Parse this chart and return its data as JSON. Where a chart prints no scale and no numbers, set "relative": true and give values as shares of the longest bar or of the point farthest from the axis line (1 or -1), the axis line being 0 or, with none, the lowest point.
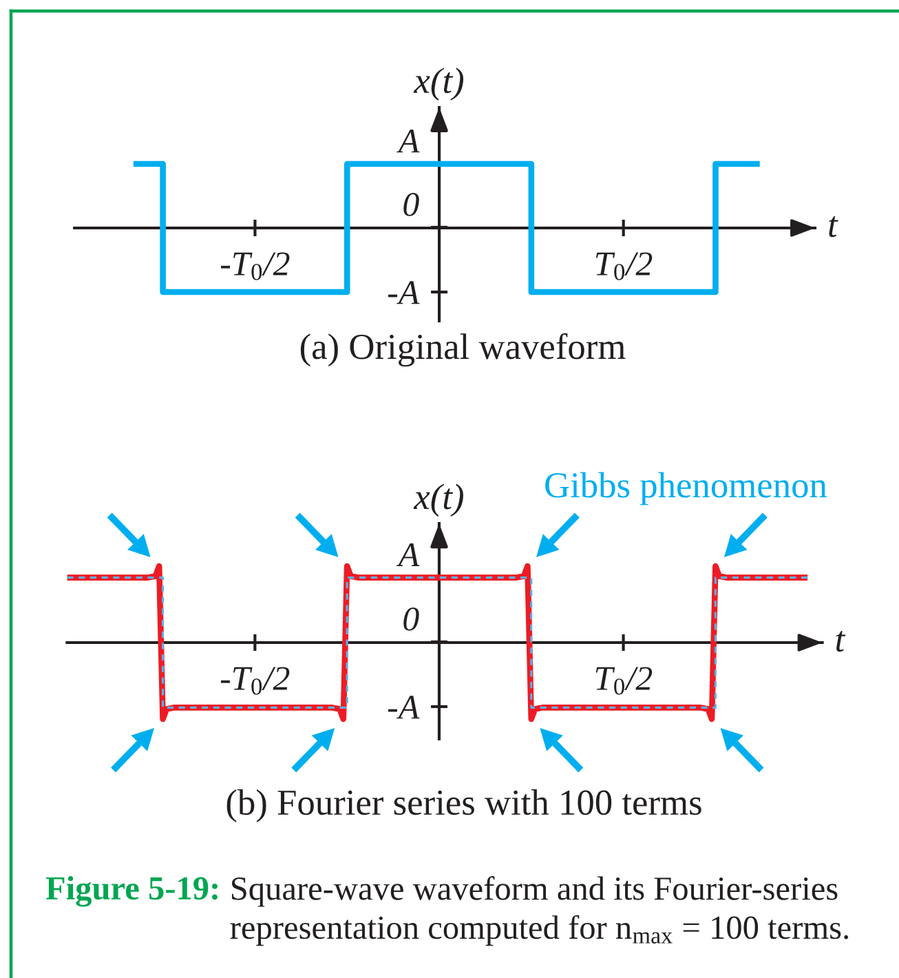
{
  "chart_data": [
    {
      "type": "step",
      "relative": true,
      "title": "(a) Original waveform",
      "xlabel": "t",
      "ylabel": "x(t)",
      "categories": [
        null,
        null,
        null,
        null,
        null,
        null,
        null,
        null,
        null,
        null,
        null,
        null,
        null,
        null,
        null,
        null,
        null,
        null,
        null,
        null,
        null,
        null,
        null,
        null,
        null,
        null,
        null,
        null,
        null,
        null,
        null,
        null,
        null,
        null,
        null,
        null,
        null,
        null,
        null,
        null,
        null,
        null,
        null,
        null,
        null,
        null,
        null,
        null,
        null,
        "-T$_{0}$/2",
        null,
        null,
        null,
        null,
        null,
        null,
        null,
        null,
        null,
        null,
        null,
        null,
        null,
        null,
        null,
        null,
        null,
        null,
        null,
        null,
        null,
        null,
        null,
        null,
        null,
        null,
        null,
        null,
        null,
        null,
        null,
        null,
        null,
        null,
        null,
        null,
        null,
        null,
        null,
        null,
        null,
        null,
        null,
        null,
        null,
        null,
        null,
        null,
        null,
        null,
        null,
        null,
        null,
        null,
        null,
        null,
        null,
        null,
        null,
        null,
        null,
        null,
        null,
        null,
        null,
        null,
        null,
        null,
        null,
        null,
        null,
        null,
        null,
        null,
        null,
        null,
        null,
        null,
        null,
        null,
        null,
        null,
        null,
        null,
        null,
        null,
        null,
        null,
        null,
        null,
        null,
        null,
        null,
        null,
        null,
        null,
        null,
        null,
        null,
        "T$_{0}$/2",
        null,
        null,
        null,
        null,
        null,
        null,
        null,
        null,
        null,
        null,
        null,
        null,
        null,
        null,
        null,
        null,
        null,
        null,
        null,
        null,
        null,
        null,
        null,
        null,
        null,
        null,
        null,
        null,
        null,
        null,
        null,
        null,
        null,
        null,
        null,
        null,
        null,
        null,
        null,
        null,
        null,
        null,
        null,
        null,
        null,
        null,
        null,
        null,
        null,
        null,
        null,
        null
      ],
      "series": [
        {
          "color": "#00aeef",
          "values": [
            null,
            null,
            null,
            null,
            null,
            null,
            null,
            null,
            null,
            null,
            null,
            null,
            null,
            null,
            null,
            null,
            1,
            1,
            1,
            1,
            1,
            1,
            1,
            1,
            -1,
            -1,
            -1,
            -1,
            -1,
            -1,
            -1,
            -1,
            -1,
            -1,
            -1,
            -1,
            -1,
            -1,
            -1,
            -1,
            -1,
            -1,
            -1,
            -1,
            -1,
            -1,
            -1,
            -1,
            -1,
            -1,
            -1,
            -1,
            -1,
            -1,
            -1,
            -1,
            -1,
            -1,
            -1,
            -1,
            -1,
            -1,
            -1,
            -1,
            -1,
            -1,
            -1,
            -1,
            -1,
            -1,
            -1,
            -1,
            -1,
            -1,
            1,
            1,
            1,
            1,
            1,
            1,
            1,
            1,
            1,
            1,
            1,
            1,
            1,
            1,
            1,
            1,
            1,
            1,
            1,
            1,
            1,
            1,
            1,
            1,
            1,
            1,
            1,
            1,
            1,
            1,
            1,
            1,
            1,
            1,
            1,
            1,
            1,
            1,
            1,
            1,
            1,
            1,
            1,
            1,
            1,
            1,
            1,
            1,
            1,
            1,
            -1,
            -1,
            -1,
            -1,
            -1,
            -1,
            -1,
            -1,
            -1,
            -1,
            -1,
            -1,
            -1,
            -1,
            -1,
            -1,
            -1,
            -1,
            -1,
            -1,
            -1,
            -1,
            -1,
            -1,
            -1,
            -1,
            -1,
            -1,
            -1,
            -1,
            -1,
            -1,
            -1,
            -1,
            -1,
            -1,
            -1,
            -1,
            -1,
            -1,
            -1,
            -1,
            -1,
            -1,
            -1,
            -1,
            -1,
            -1,
            -1,
            -1,
            1,
            1,
            1,
            1,
            1,
            1,
            1,
            1,
            1,
            1,
            1,
            1,
            1,
            null,
            null,
            null,
            null,
            null,
            null,
            null,
            null,
            null,
            null,
            null,
            null,
            null,
            null,
            null
          ]
        }
      ],
      "annotations": [
        {
          "text": "A",
          "y": 1
        },
        "0",
        "-A"
      ]
    },
    {
      "type": "line",
      "relative": true,
      "title": "(b) Fourier series with 100 terms",
      "xlabel": "t",
      "ylabel": "x(t)",
      "categories": [
        null,
        null,
        null,
        null,
        null,
        null,
        null,
        null,
        null,
        null,
        null,
        null,
        null,
        null,
        null,
        null,
        null,
        null,
        null,
        null,
        null,
        null,
        null,
        null,
        null,
        null,
        null,
        null,
        null,
        null,
        null,
        null,
        null,
        null,
        null,
        null,
        null,
        null,
        null,
        null,
        null,
        null,
        null,
        null,
        null,
        null,
        null,
        null,
        null,
        null,
        null,
        "-T$_{0}$/2",
        null,
        null,
        null,
        null,
        null,
        null,
        null,
        null,
        null,
        null,
        null,
        null,
        null,
        null,
        null,
        null,
        null,
        null,
        null,
        null,
        null,
        null,
        null,
        null,
        null,
        null,
        null,
        null,
        null,
        null,
        null,
        null,
        null,
        null,
        null,
        null,
        null,
        null,
        null,
        null,
        null,
        null,
        null,
        null,
        null,
        null,
        null,
        null,
        null,
        null,
        null,
        null,
        null,
        null,
        null,
        null,
        null,
        null,
        null,
        null,
        null,
        null,
        null,
        null,
        null,
        null,
        null,
        null,
        null,
        null,
        null,
        null,
        null,
        null,
        null,
        null,
        null,
        null,
        null,
        null,
        null,
        null,
        null,
        null,
        null,
        null,
        null,
        null,
        null,
        null,
        null,
        null,
        null,
        null,
        null,
        null,
        null,
        null,
        null,
        "T$_{0}$/2",
        null,
        null,
        null,
        null,
        null,
        null,
        null,
        null,
        null,
        null,
        null,
        null,
        null,
        null,
        null,
        null,
        null,
        null,
        null,
        null,
        null,
        null,
        null,
        null,
        null,
        null,
        null,
        null,
        null,
        null,
        null,
        null,
        null,
        null,
        null,
        null,
        null,
        null,
        null,
        null,
        null,
        null,
        null,
        null,
        null,
        null,
        null,
        null,
        null,
        null,
        null,
        null,
        null,
        null
      ],
      "series": [
        {
          "color": "#ed1c24",
          "values": [
            0.85,
            0.85,
            0.85,
            0.85,
            0.85,
            0.85,
            0.85,
            0.85,
            0.85,
            0.85,
            0.85,
            0.85,
            0.85,
            0.85,
            0.85,
            0.85,
            0.85,
            0.85,
            0.85,
            0.85,
            0.85,
            0.85,
            0.85,
            0.86,
            0.87,
            1,
            -1,
            -0.87,
            -0.86,
            -0.85,
            -0.85,
            -0.85,
            -0.85,
            -0.85,
            -0.85,
            -0.85,
            -0.85,
            -0.85,
            -0.85,
            -0.85,
            -0.85,
            -0.85,
            -0.85,
            -0.85,
            -0.85,
            -0.85,
            -0.85,
            -0.85,
            -0.85,
            -0.85,
            -0.85,
            -0.85,
            -0.85,
            -0.85,
            -0.85,
            -0.85,
            -0.85,
            -0.85,
            -0.85,
            -0.85,
            -0.85,
            -0.85,
            -0.85,
            -0.85,
            -0.85,
            -0.85,
            -0.85,
            -0.85,
            -0.85,
            -0.85,
            -0.85,
            -0.85,
            -0.85,
            -0.86,
            -0.87,
            -1,
            1,
            0.87,
            0.86,
            0.85,
            0.85,
            0.85,
            0.85,
            0.85,
            0.85,
            0.85,
            0.85,
            0.85,
            0.85,
            0.85,
            0.85,
            0.85,
            0.85,
            0.85,
            0.85,
            0.85,
            0.85,
            0.85,
            0.85,
            0.85,
            0.85,
            0.85,
            0.85,
            0.85,
            0.85,
            0.85,
            0.85,
            0.85,
            0.85,
            0.85,
            0.85,
            0.85,
            0.85,
            0.85,
            0.85,
            0.85,
            0.85,
            0.85,
            0.85,
            0.85,
            0.85,
            0.85,
            0.85,
            0.86,
            0.87,
            1,
            -1,
            -0.87,
            -0.86,
            -0.85,
            -0.85,
            -0.85,
            -0.85,
            -0.85,
            -0.85,
            -0.85,
            -0.85,
            -0.85,
            -0.85,
            -0.85,
            -0.85,
            -0.85,
            -0.85,
            -0.85,
            -0.85,
            -0.85,
            -0.85,
            -0.85,
            -0.85,
            -0.85,
            -0.85,
            -0.85,
            -0.85,
            -0.85,
            -0.85,
            -0.85,
            -0.85,
            -0.85,
            -0.85,
            -0.85,
            -0.85,
            -0.85,
            -0.85,
            -0.85,
            -0.85,
            -0.85,
            -0.85,
            -0.85,
            -0.85,
            -0.85,
            -0.85,
            -0.85,
            -0.85,
            -0.86,
            -0.87,
            -1,
            1,
            0.87,
            0.86,
            0.85,
            0.85,
            0.85,
            0.85,
            0.85,
            0.85,
            0.85,
            0.85,
            0.85,
            0.85,
            0.85,
            0.85,
            0.85,
            0.85,
            0.85,
            0.85,
            0.85,
            0.85,
            0.85,
            0.85,
            0.85,
            0.85,
            0.85,
            null,
            null,
            null,
            null
          ]
        },
        {
          "color": "#5eb0e5",
          "type": "step",
          "line_style": "dashed",
          "values": [
            0.85,
            0.85,
            0.85,
            0.85,
            0.85,
            0.85,
            0.85,
            0.85,
            0.85,
            0.85,
            0.85,
            0.85,
            0.85,
            0.85,
            0.85,
            0.85,
            0.85,
            0.85,
            0.85,
            0.85,
            0.85,
            0.85,
            0.85,
            0.85,
            0.85,
            0.85,
            -0.85,
            -0.85,
            -0.85,
            -0.85,
            -0.85,
            -0.85,
            -0.85,
            -0.85,
            -0.85,
            -0.85,
            -0.85,
            -0.85,
            -0.85,
            -0.85,
            -0.85,
            -0.85,
            -0.85,
            -0.85,
            -0.85,
            -0.85,
            -0.85,
            -0.85,
            -0.85,
            -0.85,
            -0.85,
            -0.85,
            -0.85,
            -0.85,
            -0.85,
            -0.85,
            -0.85,
            -0.85,
            -0.85,
            -0.85,
            -0.85,
            -0.85,
            -0.85,
            -0.85,
            -0.85,
            -0.85,
            -0.85,
            -0.85,
            -0.85,
            -0.85,
            -0.85,
            -0.85,
            -0.85,
            -0.85,
            -0.85,
            -0.85,
            0.85,
            0.85,
            0.85,
            0.85,
            0.85,
            0.85,
            0.85,
            0.85,
            0.85,
            0.85,
            0.85,
            0.85,
            0.85,
            0.85,
            0.85,
            0.85,
            0.85,
            0.85,
            0.85,
            0.85,
            0.85,
            0.85,
            0.85,
            0.85,
            0.85,
            0.85,
            0.85,
            0.85,
            0.85,
            0.85,
            0.85,
            0.85,
            0.85,
            0.85,
            0.85,
            0.85,
            0.85,
            0.85,
            0.85,
            0.85,
            0.85,
            0.85,
            0.85,
            0.85,
            0.85,
            0.85,
            0.85,
            0.85,
            0.85,
            0.85,
            -0.85,
            -0.85,
            -0.85,
            -0.85,
            -0.85,
            -0.85,
            -0.85,
            -0.85,
            -0.85,
            -0.85,
            -0.85,
            -0.85,
            -0.85,
            -0.85,
            -0.85,
            -0.85,
            -0.85,
            -0.85,
            -0.85,
            -0.85,
            -0.85,
            -0.85,
            -0.85,
            -0.85,
            -0.85,
            -0.85,
            -0.85,
            -0.85,
            -0.85,
            -0.85,
            -0.85,
            -0.85,
            -0.85,
            -0.85,
            -0.85,
            -0.85,
            -0.85,
            -0.85,
            -0.85,
            -0.85,
            -0.85,
            -0.85,
            -0.85,
            -0.85,
            -0.85,
            -0.85,
            -0.85,
            -0.85,
            -0.85,
            -0.85,
            0.85,
            0.85,
            0.85,
            0.85,
            0.85,
            0.85,
            0.85,
            0.85,
            0.85,
            0.85,
            0.85,
            0.85,
            0.85,
            0.85,
            0.85,
            0.85,
            0.85,
            0.85,
            0.85,
            0.85,
            0.85,
            0.85,
            0.85,
            0.85,
            0.85,
            0.85,
            null,
            null,
            null,
            null
          ]
        }
      ],
      "annotations": [
        {
          "text": "A",
          "y": 0.85
        },
        "0",
        "-A",
        "Gibbs phenomenon",
        "Figure 5-19:",
        "Square-wave waveform and its Fourier-series representation computed for n$_{max}$ = 100 terms."
      ]
    }
  ]
}
